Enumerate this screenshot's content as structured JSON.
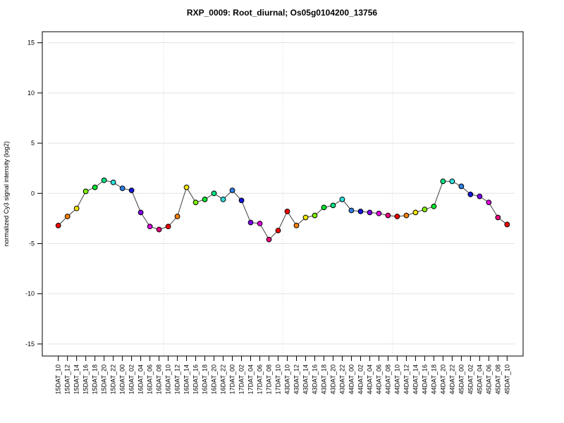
{
  "title": "RXP_0009: Root_diurnal; Os05g0104200_13756",
  "chart_data": {
    "type": "line",
    "title": "RXP_0009: Root_diurnal; Os05g0104200_13756",
    "xlabel": "",
    "ylabel": "normalized Cy3 signal intensity (log2)",
    "categories": [
      "15DAT_10",
      "15DAT_12",
      "15DAT_14",
      "15DAT_16",
      "15DAT_18",
      "15DAT_20",
      "15DAT_22",
      "16DAT_00",
      "16DAT_02",
      "16DAT_04",
      "16DAT_06",
      "16DAT_08",
      "16DAT_10",
      "16DAT_12",
      "16DAT_14",
      "16DAT_16",
      "16DAT_18",
      "16DAT_20",
      "16DAT_22",
      "17DAT_00",
      "17DAT_02",
      "17DAT_04",
      "17DAT_06",
      "17DAT_08",
      "17DAT_10",
      "43DAT_10",
      "43DAT_12",
      "43DAT_14",
      "43DAT_16",
      "43DAT_18",
      "43DAT_20",
      "43DAT_22",
      "44DAT_00",
      "44DAT_02",
      "44DAT_04",
      "44DAT_06",
      "44DAT_08",
      "44DAT_10",
      "44DAT_12",
      "44DAT_14",
      "44DAT_16",
      "44DAT_18",
      "44DAT_20",
      "44DAT_22",
      "45DAT_00",
      "45DAT_02",
      "45DAT_04",
      "45DAT_06",
      "45DAT_08",
      "45DAT_10"
    ],
    "values": [
      -3.2,
      -2.3,
      -1.5,
      0.2,
      0.6,
      1.3,
      1.1,
      0.5,
      0.3,
      -1.9,
      -3.3,
      -3.6,
      -3.3,
      -2.3,
      0.6,
      -0.9,
      -0.6,
      0.0,
      -0.6,
      0.3,
      -0.7,
      -2.9,
      -3.0,
      -4.6,
      -3.7,
      -1.8,
      -3.2,
      -2.4,
      -2.2,
      -1.4,
      -1.2,
      -0.6,
      -1.7,
      -1.8,
      -1.9,
      -2.0,
      -2.2,
      -2.3,
      -2.2,
      -1.9,
      -1.6,
      -1.3,
      1.2,
      1.2,
      0.7,
      -0.1,
      -0.3,
      -0.9,
      -2.4,
      -3.1
    ],
    "time_color_map": {
      "10": "#FF0000",
      "12": "#FF8000",
      "14": "#F2E500",
      "16": "#80F000",
      "18": "#00E52E",
      "20": "#00E080",
      "22": "#2EE0E0",
      "00": "#2E80E8",
      "02": "#1414E0",
      "04": "#8000F0",
      "06": "#E000E0",
      "08": "#F00080"
    },
    "yticks": [
      15,
      10,
      5,
      0,
      -5,
      -10,
      -15
    ],
    "ylim": [
      -16.2,
      16.1
    ],
    "grid": "horizontal solid lines at yticks; dotted vertical day separators",
    "separator_after_index": [
      11,
      24,
      36
    ],
    "legend": "none",
    "line_color": "#404040",
    "point_outline_color": "#000000",
    "gridline_color": "#e3e3e3",
    "separator_color": "#cfcfcf",
    "axis_color": "#000000"
  }
}
